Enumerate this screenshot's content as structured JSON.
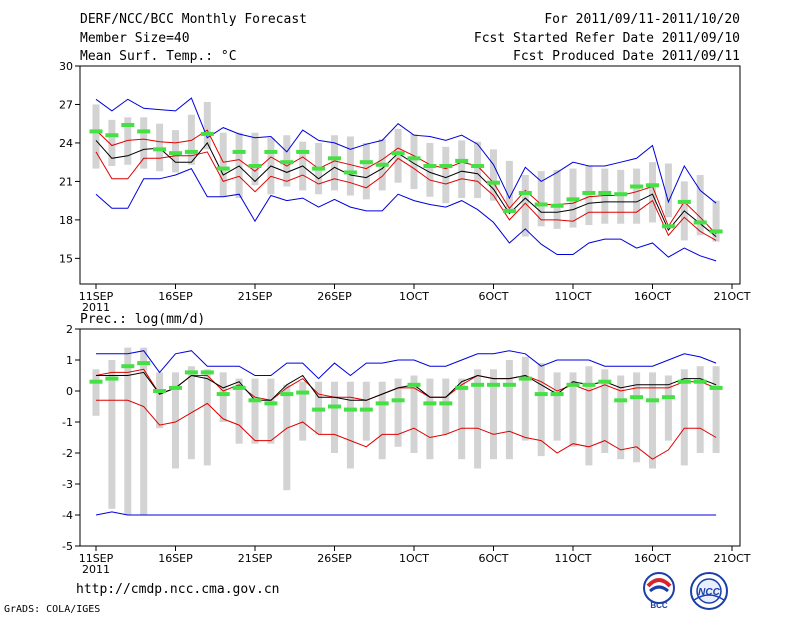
{
  "header": {
    "title": "DERF/NCC/BCC Monthly Forecast",
    "member_size": "Member Size=40",
    "variable": "Mean Surf. Temp.: °C",
    "forecast_period": "For 2011/09/11-2011/10/20",
    "start_date": "Fcst Started Refer Date 2011/09/10",
    "produced_date": "Fcst Produced Date 2011/09/11"
  },
  "footer": {
    "url": "http://cmdp.ncc.cma.gov.cn",
    "credit": "GrADS: COLA/IGES",
    "logo_left": "BCC",
    "logo_right": "NCC"
  },
  "colors": {
    "box": "#d3d3d3",
    "mean": "#44e044",
    "median": "#000000",
    "inner": "#e00000",
    "outer": "#0000dd",
    "frame": "#000000"
  },
  "chart_data": [
    {
      "type": "box-whisker-ensemble",
      "title": "Mean Surf. Temp.: °C",
      "ylim": [
        13,
        30
      ],
      "yticks": [
        15,
        18,
        21,
        24,
        27,
        30
      ],
      "xlim": [
        0,
        40
      ],
      "xticks": [
        0,
        5,
        10,
        15,
        20,
        25,
        30,
        35,
        40
      ],
      "xtick_labels": [
        "11SEP",
        "16SEP",
        "21SEP",
        "26SEP",
        "1OCT",
        "6OCT",
        "11OCT",
        "16OCT",
        "21OCT"
      ],
      "xtick_year": "2011",
      "days": [
        0,
        1,
        2,
        3,
        4,
        5,
        6,
        7,
        8,
        9,
        10,
        11,
        12,
        13,
        14,
        15,
        16,
        17,
        18,
        19,
        20,
        21,
        22,
        23,
        24,
        25,
        26,
        27,
        28,
        29,
        30,
        31,
        32,
        33,
        34,
        35,
        36,
        37,
        38,
        39
      ],
      "box_low": [
        22.0,
        22.2,
        22.3,
        22.0,
        21.8,
        21.7,
        22.3,
        23.5,
        19.8,
        19.7,
        20.7,
        20.0,
        20.6,
        20.3,
        20.0,
        20.3,
        19.9,
        19.6,
        20.3,
        20.9,
        20.4,
        19.8,
        19.3,
        19.7,
        19.7,
        19.5,
        18.7,
        16.7,
        17.5,
        17.3,
        17.4,
        17.6,
        17.7,
        17.7,
        17.7,
        17.8,
        18.2,
        16.4,
        16.8,
        16.3
      ],
      "box_high": [
        27.0,
        25.8,
        26.0,
        26.0,
        25.5,
        25.0,
        26.2,
        27.2,
        24.8,
        24.8,
        24.8,
        24.4,
        24.6,
        24.1,
        24.0,
        24.6,
        24.5,
        24.0,
        24.3,
        25.1,
        24.7,
        24.0,
        23.7,
        24.2,
        24.1,
        23.5,
        22.6,
        21.5,
        21.8,
        21.9,
        22.0,
        22.2,
        22.0,
        21.9,
        22.0,
        22.5,
        22.4,
        21.0,
        21.5,
        19.5
      ],
      "mean": [
        24.9,
        24.6,
        25.4,
        24.9,
        23.5,
        23.2,
        23.3,
        24.7,
        22.0,
        23.3,
        22.2,
        23.3,
        22.5,
        23.3,
        22.0,
        22.8,
        21.7,
        22.5,
        22.3,
        23.2,
        22.8,
        22.2,
        22.2,
        22.6,
        22.2,
        20.9,
        18.7,
        20.1,
        19.2,
        19.1,
        19.6,
        20.1,
        20.1,
        20.0,
        20.6,
        20.7,
        17.5,
        19.4,
        17.8,
        17.1
      ],
      "median": [
        24.2,
        22.8,
        23.0,
        23.5,
        23.6,
        22.5,
        22.5,
        24.0,
        21.5,
        22.2,
        21.0,
        22.2,
        21.7,
        22.2,
        21.2,
        22.1,
        21.5,
        21.3,
        22.0,
        23.2,
        22.4,
        21.7,
        21.3,
        21.8,
        21.6,
        20.4,
        18.5,
        19.7,
        18.6,
        18.6,
        18.8,
        19.3,
        19.4,
        19.4,
        19.4,
        20.0,
        17.2,
        18.7,
        17.7,
        16.7
      ],
      "inner_high": [
        25.0,
        23.8,
        24.2,
        24.3,
        24.1,
        24.0,
        24.2,
        25.0,
        22.5,
        22.7,
        21.8,
        22.9,
        22.2,
        22.9,
        22.0,
        22.6,
        22.3,
        22.0,
        22.7,
        23.6,
        23.0,
        22.3,
        22.0,
        22.5,
        22.2,
        20.9,
        18.9,
        20.3,
        19.2,
        19.2,
        19.3,
        19.8,
        19.9,
        19.9,
        20.2,
        20.6,
        17.5,
        19.4,
        18.2,
        16.9
      ],
      "inner_low": [
        23.3,
        21.2,
        21.2,
        22.8,
        22.8,
        23.0,
        23.0,
        23.3,
        21.0,
        21.4,
        20.2,
        21.4,
        21.0,
        21.5,
        20.8,
        21.2,
        20.9,
        20.5,
        21.4,
        22.8,
        22.0,
        21.1,
        20.8,
        21.2,
        21.0,
        19.9,
        18.0,
        19.3,
        18.0,
        18.0,
        17.9,
        18.6,
        18.6,
        18.6,
        18.6,
        19.5,
        16.8,
        18.2,
        17.1,
        16.4
      ],
      "outer_high": [
        27.4,
        26.5,
        27.4,
        26.7,
        26.6,
        26.5,
        27.5,
        24.4,
        25.2,
        24.7,
        24.4,
        24.5,
        23.3,
        25.0,
        24.2,
        24.0,
        23.5,
        23.9,
        24.2,
        25.5,
        24.6,
        24.5,
        24.2,
        24.6,
        23.9,
        22.3,
        19.7,
        22.1,
        21.0,
        21.7,
        22.5,
        22.2,
        22.2,
        22.5,
        22.8,
        23.8,
        19.4,
        22.2,
        20.3,
        19.3
      ],
      "outer_low": [
        20.0,
        18.9,
        18.9,
        21.2,
        21.2,
        21.5,
        22.0,
        19.8,
        19.8,
        20.0,
        17.9,
        19.9,
        19.5,
        19.7,
        19.0,
        19.6,
        19.0,
        18.7,
        18.7,
        20.0,
        19.5,
        19.2,
        19.0,
        19.5,
        18.8,
        17.8,
        16.2,
        17.3,
        16.1,
        15.3,
        15.3,
        16.2,
        16.5,
        16.5,
        15.8,
        16.2,
        15.1,
        15.8,
        15.2,
        14.8
      ]
    },
    {
      "type": "box-whisker-ensemble",
      "title": "Prec.: log(mm/d)",
      "ylim": [
        -5,
        2
      ],
      "yticks": [
        -5,
        -4,
        -3,
        -2,
        -1,
        0,
        1,
        2
      ],
      "xlim": [
        0,
        40
      ],
      "xticks": [
        0,
        5,
        10,
        15,
        20,
        25,
        30,
        35,
        40
      ],
      "xtick_labels": [
        "11SEP",
        "16SEP",
        "21SEP",
        "26SEP",
        "1OCT",
        "6OCT",
        "11OCT",
        "16OCT",
        "21OCT"
      ],
      "xtick_year": "2011",
      "days": [
        0,
        1,
        2,
        3,
        4,
        5,
        6,
        7,
        8,
        9,
        10,
        11,
        12,
        13,
        14,
        15,
        16,
        17,
        18,
        19,
        20,
        21,
        22,
        23,
        24,
        25,
        26,
        27,
        28,
        29,
        30,
        31,
        32,
        33,
        34,
        35,
        36,
        37,
        38,
        39
      ],
      "box_low": [
        -0.8,
        -3.8,
        -4.0,
        -4.0,
        -1.2,
        -2.5,
        -2.2,
        -2.4,
        -1.0,
        -1.7,
        -1.7,
        -1.7,
        -3.2,
        -1.6,
        -1.4,
        -2.0,
        -2.5,
        -1.6,
        -2.2,
        -1.8,
        -2.0,
        -2.2,
        -1.4,
        -2.2,
        -2.5,
        -2.2,
        -2.2,
        -1.6,
        -2.1,
        -1.6,
        -1.8,
        -2.4,
        -2.0,
        -2.2,
        -2.3,
        -2.5,
        -1.6,
        -2.4,
        -2.0,
        -2.0
      ],
      "box_high": [
        0.7,
        1.0,
        1.4,
        1.4,
        0.6,
        0.6,
        0.8,
        0.7,
        0.6,
        0.4,
        0.4,
        0.4,
        0.2,
        0.3,
        0.3,
        0.3,
        0.3,
        0.3,
        0.3,
        0.4,
        0.5,
        0.4,
        0.4,
        0.4,
        0.7,
        0.7,
        1.0,
        1.1,
        0.9,
        0.6,
        0.6,
        0.8,
        0.7,
        0.5,
        0.6,
        0.6,
        0.5,
        0.7,
        0.8,
        0.8
      ],
      "mean": [
        0.3,
        0.4,
        0.8,
        0.9,
        0.0,
        0.1,
        0.6,
        0.6,
        -0.1,
        0.1,
        -0.3,
        -0.4,
        -0.1,
        -0.05,
        -0.6,
        -0.5,
        -0.6,
        -0.6,
        -0.4,
        -0.3,
        0.2,
        -0.4,
        -0.4,
        0.1,
        0.2,
        0.2,
        0.2,
        0.4,
        -0.1,
        -0.1,
        0.2,
        0.2,
        0.3,
        -0.3,
        -0.2,
        -0.3,
        -0.2,
        0.3,
        0.3,
        0.1
      ],
      "median": [
        0.5,
        0.5,
        0.5,
        0.6,
        -0.1,
        0.1,
        0.5,
        0.4,
        0.1,
        0.3,
        -0.3,
        -0.3,
        0.2,
        0.5,
        -0.2,
        -0.2,
        -0.3,
        -0.3,
        -0.1,
        0.1,
        0.2,
        -0.2,
        -0.2,
        0.3,
        0.5,
        0.4,
        0.4,
        0.5,
        0.2,
        -0.1,
        0.3,
        0.2,
        0.3,
        0.1,
        0.2,
        0.2,
        0.2,
        0.4,
        0.4,
        0.2
      ],
      "inner_high": [
        0.5,
        0.6,
        0.6,
        0.7,
        -0.1,
        0.1,
        0.5,
        0.5,
        0.0,
        0.2,
        -0.2,
        -0.3,
        0.1,
        0.4,
        -0.1,
        -0.2,
        -0.2,
        -0.3,
        -0.1,
        0.1,
        0.1,
        -0.2,
        -0.2,
        0.2,
        0.5,
        0.4,
        0.4,
        0.5,
        0.3,
        0.0,
        0.2,
        0.0,
        0.2,
        0.0,
        0.1,
        0.1,
        0.1,
        0.3,
        0.3,
        0.1
      ],
      "inner_low": [
        -0.3,
        -0.3,
        -0.3,
        -0.5,
        -1.1,
        -1.0,
        -0.7,
        -0.4,
        -0.9,
        -1.1,
        -1.6,
        -1.6,
        -1.2,
        -1.0,
        -1.4,
        -1.4,
        -1.6,
        -1.8,
        -1.4,
        -1.4,
        -1.2,
        -1.5,
        -1.4,
        -1.2,
        -1.2,
        -1.4,
        -1.3,
        -1.5,
        -1.6,
        -2.0,
        -1.7,
        -1.8,
        -1.6,
        -1.9,
        -1.8,
        -2.2,
        -1.9,
        -1.2,
        -1.2,
        -1.5
      ],
      "outer_high": [
        1.2,
        1.2,
        1.2,
        1.3,
        0.6,
        1.2,
        1.3,
        0.8,
        0.8,
        0.8,
        0.5,
        0.5,
        0.9,
        0.9,
        0.4,
        0.9,
        0.5,
        0.9,
        0.9,
        1.0,
        1.0,
        0.8,
        0.8,
        1.0,
        1.2,
        1.2,
        1.3,
        1.2,
        0.8,
        1.0,
        1.0,
        1.0,
        0.8,
        0.8,
        0.8,
        0.8,
        1.0,
        1.2,
        1.1,
        0.9
      ],
      "outer_low": [
        -4.0,
        -3.9,
        -4.0,
        -4.0,
        -4.0,
        -4.0,
        -4.0,
        -4.0,
        -4.0,
        -4.0,
        -4.0,
        -4.0,
        -4.0,
        -4.0,
        -4.0,
        -4.0,
        -4.0,
        -4.0,
        -4.0,
        -4.0,
        -4.0,
        -4.0,
        -4.0,
        -4.0,
        -4.0,
        -4.0,
        -4.0,
        -4.0,
        -4.0,
        -4.0,
        -4.0,
        -4.0,
        -4.0,
        -4.0,
        -4.0,
        -4.0,
        -4.0,
        -4.0,
        -4.0,
        -4.0
      ]
    }
  ]
}
